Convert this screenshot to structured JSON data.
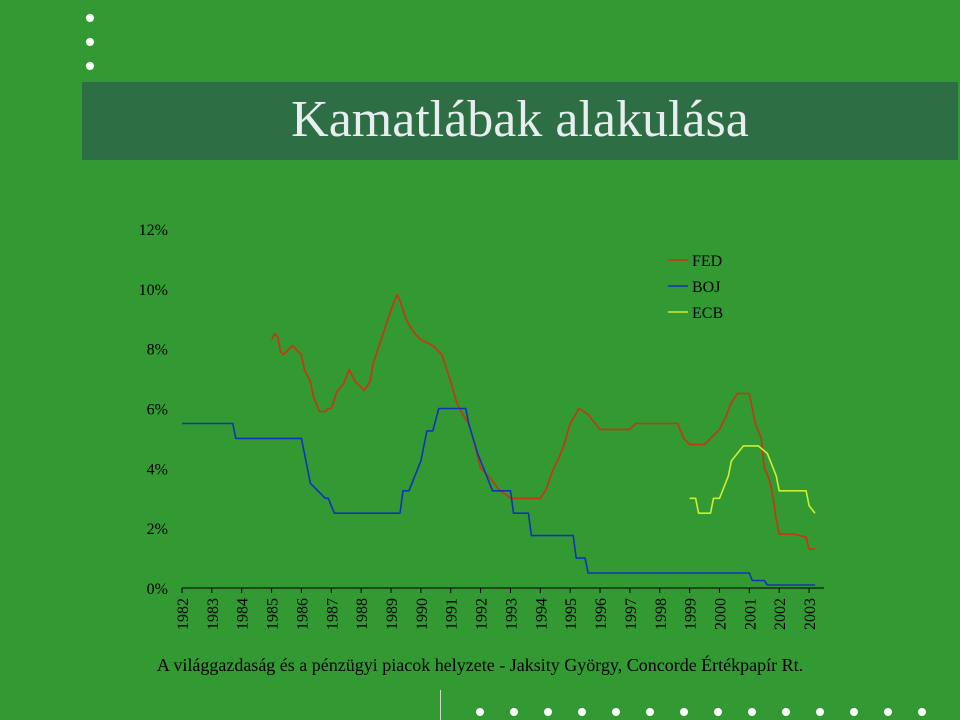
{
  "slide": {
    "title": "Kamatlábak alakulása",
    "footer": "A világgazdaság és a pénzügyi piacok helyzete - Jaksity György, Concorde Értékpapír Rt."
  },
  "chart_data": {
    "type": "line",
    "title": "",
    "xlabel": "",
    "ylabel": "",
    "xlim": [
      1982,
      2003.5
    ],
    "ylim": [
      0,
      12
    ],
    "yticks": [
      "0%",
      "2%",
      "4%",
      "6%",
      "8%",
      "10%",
      "12%"
    ],
    "xticks": [
      "1982",
      "1983",
      "1984",
      "1985",
      "1986",
      "1987",
      "1988",
      "1989",
      "1990",
      "1991",
      "1992",
      "1993",
      "1994",
      "1995",
      "1996",
      "1997",
      "1998",
      "1999",
      "2000",
      "2001",
      "2002",
      "2003"
    ],
    "legend_position": "top-right",
    "series": [
      {
        "name": "FED",
        "color": "#cc3311",
        "x": [
          1985.0,
          1985.1,
          1985.2,
          1985.3,
          1985.4,
          1985.7,
          1985.8,
          1986.0,
          1986.1,
          1986.3,
          1986.4,
          1986.6,
          1986.8,
          1986.9,
          1987.0,
          1987.2,
          1987.4,
          1987.6,
          1987.8,
          1988.0,
          1988.1,
          1988.3,
          1988.4,
          1988.6,
          1988.7,
          1988.8,
          1989.0,
          1989.2,
          1989.3,
          1989.5,
          1989.6,
          1989.8,
          1990.0,
          1990.2,
          1990.4,
          1990.5,
          1990.7,
          1991.0,
          1991.2,
          1991.4,
          1991.6,
          1991.8,
          1992.0,
          1992.3,
          1992.6,
          1993.0,
          1993.5,
          1994.0,
          1994.2,
          1994.4,
          1994.6,
          1994.8,
          1995.0,
          1995.3,
          1995.6,
          1996.0,
          1996.5,
          1997.0,
          1997.2,
          1998.0,
          1998.6,
          1998.8,
          1999.0,
          1999.5,
          1999.7,
          2000.0,
          2000.2,
          2000.4,
          2000.6,
          2001.0,
          2001.2,
          2001.4,
          2001.5,
          2001.6,
          2001.7,
          2001.8,
          2001.9,
          2002.0,
          2002.5,
          2002.9,
          2003.0,
          2003.2
        ],
        "y": [
          8.3,
          8.5,
          8.4,
          7.9,
          7.8,
          8.1,
          8.0,
          7.8,
          7.3,
          6.9,
          6.4,
          5.9,
          5.9,
          6.0,
          6.0,
          6.6,
          6.8,
          7.3,
          6.9,
          6.7,
          6.6,
          6.9,
          7.5,
          8.1,
          8.4,
          8.7,
          9.3,
          9.8,
          9.6,
          9.0,
          8.8,
          8.5,
          8.3,
          8.2,
          8.1,
          8.0,
          7.8,
          6.9,
          6.2,
          5.8,
          5.5,
          4.8,
          4.0,
          3.7,
          3.3,
          3.0,
          3.0,
          3.0,
          3.3,
          3.9,
          4.3,
          4.8,
          5.5,
          6.0,
          5.8,
          5.3,
          5.3,
          5.3,
          5.5,
          5.5,
          5.5,
          5.0,
          4.8,
          4.8,
          5.0,
          5.3,
          5.7,
          6.2,
          6.5,
          6.5,
          5.5,
          5.0,
          4.0,
          3.8,
          3.5,
          3.0,
          2.3,
          1.8,
          1.8,
          1.7,
          1.3,
          1.3
        ]
      },
      {
        "name": "BOJ",
        "color": "#1133bb",
        "x": [
          1982.0,
          1983.7,
          1983.8,
          1985.0,
          1986.0,
          1986.1,
          1986.2,
          1986.3,
          1986.8,
          1986.9,
          1987.1,
          1987.2,
          1989.3,
          1989.4,
          1989.6,
          1989.8,
          1990.0,
          1990.2,
          1990.4,
          1990.6,
          1991.5,
          1991.6,
          1991.9,
          1992.2,
          1992.4,
          1992.6,
          1993.0,
          1993.1,
          1993.6,
          1993.7,
          1995.1,
          1995.2,
          1995.5,
          1995.6,
          1996.0,
          2001.0,
          2001.1,
          2001.5,
          2001.6,
          2003.0,
          2003.2
        ],
        "y": [
          5.5,
          5.5,
          5.0,
          5.0,
          5.0,
          4.5,
          4.0,
          3.5,
          3.0,
          3.0,
          2.5,
          2.5,
          2.5,
          3.25,
          3.25,
          3.75,
          4.25,
          5.25,
          5.25,
          6.0,
          6.0,
          5.5,
          4.5,
          3.75,
          3.25,
          3.25,
          3.25,
          2.5,
          2.5,
          1.75,
          1.75,
          1.0,
          1.0,
          0.5,
          0.5,
          0.5,
          0.25,
          0.25,
          0.1,
          0.1,
          0.1
        ]
      },
      {
        "name": "ECB",
        "color": "#ccee33",
        "x": [
          1999.0,
          1999.2,
          1999.3,
          1999.7,
          1999.8,
          2000.0,
          2000.2,
          2000.3,
          2000.4,
          2000.6,
          2000.8,
          2001.0,
          2001.3,
          2001.6,
          2001.7,
          2001.9,
          2002.0,
          2002.9,
          2003.0,
          2003.2
        ],
        "y": [
          3.0,
          3.0,
          2.5,
          2.5,
          3.0,
          3.0,
          3.5,
          3.75,
          4.25,
          4.5,
          4.75,
          4.75,
          4.75,
          4.5,
          4.25,
          3.75,
          3.25,
          3.25,
          2.75,
          2.5
        ]
      }
    ]
  }
}
